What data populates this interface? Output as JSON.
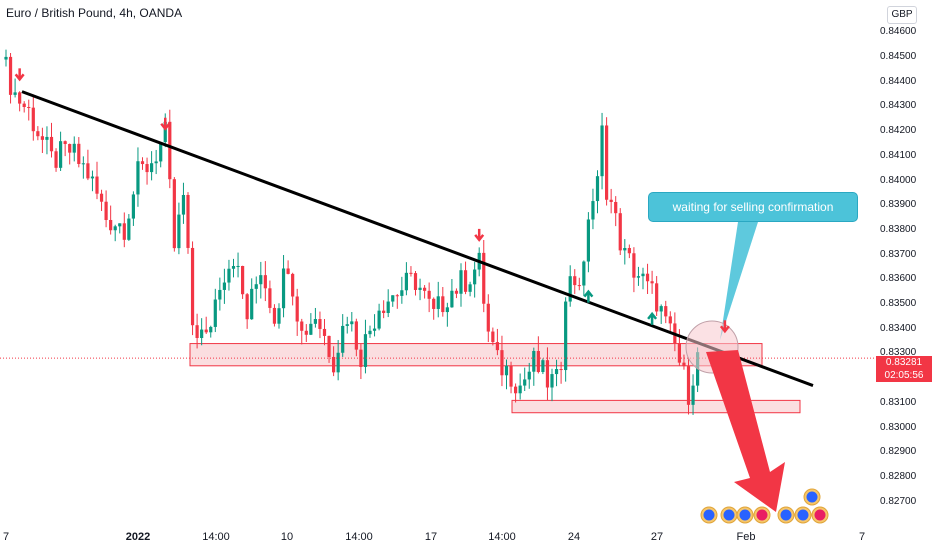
{
  "header": {
    "title": "Euro / British Pound, 4h, OANDA",
    "currency": "GBP"
  },
  "price_badge": {
    "price": "0.83281",
    "countdown": "02:05:56"
  },
  "annotation": {
    "callout_text": "waiting for selling confirmation"
  },
  "colors": {
    "bull": "#089981",
    "bear": "#f23645",
    "trendline": "#000000",
    "zone_fill": "#f9d3d6",
    "zone_border": "#f23645",
    "callout": "#4cc3d9"
  },
  "chart_data": {
    "type": "candlestick",
    "title": "Euro / British Pound, 4h, OANDA",
    "ylim": [
      0.8265,
      0.8465
    ],
    "yticks": [
      "0.84600",
      "0.84500",
      "0.84400",
      "0.84300",
      "0.84200",
      "0.84100",
      "0.84000",
      "0.83900",
      "0.83800",
      "0.83700",
      "0.83600",
      "0.83500",
      "0.83400",
      "0.83300",
      "0.83200",
      "0.83100",
      "0.83000",
      "0.82900",
      "0.82800",
      "0.82700"
    ],
    "xticks": [
      {
        "label": "7",
        "bold": false
      },
      {
        "label": "2022",
        "bold": true
      },
      {
        "label": "14:00",
        "bold": false
      },
      {
        "label": "10",
        "bold": false
      },
      {
        "label": "14:00",
        "bold": false
      },
      {
        "label": "17",
        "bold": false
      },
      {
        "label": "14:00",
        "bold": false
      },
      {
        "label": "24",
        "bold": false
      },
      {
        "label": "27",
        "bold": false
      },
      {
        "label": "Feb",
        "bold": false
      },
      {
        "label": "7",
        "bold": false
      }
    ],
    "last_price": 0.83281,
    "grid": false,
    "candle_count": 150,
    "trendline": {
      "start": 0.8436,
      "end": 0.8317
    },
    "zones": [
      {
        "low": 0.8325,
        "high": 0.8334
      },
      {
        "low": 0.8306,
        "high": 0.8311
      }
    ],
    "markers": [
      {
        "type": "sell",
        "index": 3,
        "price": 0.8443
      },
      {
        "type": "sell",
        "index": 35,
        "price": 0.8423
      },
      {
        "type": "sell",
        "index": 104,
        "price": 0.8378
      },
      {
        "type": "buy",
        "index": 128,
        "price": 0.8353
      },
      {
        "type": "buy",
        "index": 142,
        "price": 0.8344
      },
      {
        "type": "sell",
        "index": 158,
        "price": 0.8341
      }
    ],
    "swings": [
      [
        0,
        0.8445
      ],
      [
        2,
        0.8435
      ],
      [
        5,
        0.8428
      ],
      [
        8,
        0.8416
      ],
      [
        10,
        0.8408
      ],
      [
        14,
        0.8412
      ],
      [
        18,
        0.8403
      ],
      [
        22,
        0.8385
      ],
      [
        26,
        0.8382
      ],
      [
        29,
        0.8402
      ],
      [
        32,
        0.8408
      ],
      [
        35,
        0.8418
      ],
      [
        37,
        0.8373
      ],
      [
        39,
        0.8393
      ],
      [
        41,
        0.8342
      ],
      [
        44,
        0.8335
      ],
      [
        47,
        0.836
      ],
      [
        50,
        0.837
      ],
      [
        53,
        0.8345
      ],
      [
        56,
        0.8365
      ],
      [
        59,
        0.8346
      ],
      [
        62,
        0.8368
      ],
      [
        65,
        0.8338
      ],
      [
        68,
        0.8346
      ],
      [
        72,
        0.8328
      ],
      [
        75,
        0.8346
      ],
      [
        78,
        0.833
      ],
      [
        82,
        0.835
      ],
      [
        86,
        0.8355
      ],
      [
        90,
        0.836
      ],
      [
        94,
        0.8345
      ],
      [
        97,
        0.8354
      ],
      [
        101,
        0.836
      ],
      [
        104,
        0.8366
      ],
      [
        106,
        0.8338
      ],
      [
        108,
        0.8326
      ],
      [
        111,
        0.8322
      ],
      [
        113,
        0.8317
      ],
      [
        116,
        0.8326
      ],
      [
        119,
        0.8319
      ],
      [
        121,
        0.8318
      ],
      [
        122,
        0.8328
      ],
      [
        123,
        0.8357
      ],
      [
        125,
        0.836
      ],
      [
        127,
        0.8362
      ],
      [
        128,
        0.8387
      ],
      [
        130,
        0.8398
      ],
      [
        131,
        0.8419
      ],
      [
        132,
        0.8398
      ],
      [
        134,
        0.8383
      ],
      [
        136,
        0.8369
      ],
      [
        139,
        0.8362
      ],
      [
        141,
        0.8356
      ],
      [
        143,
        0.8352
      ],
      [
        145,
        0.8341
      ],
      [
        147,
        0.8333
      ],
      [
        149,
        0.832
      ],
      [
        150,
        0.8315
      ],
      [
        151,
        0.8322
      ],
      [
        152,
        0.8328
      ]
    ]
  }
}
